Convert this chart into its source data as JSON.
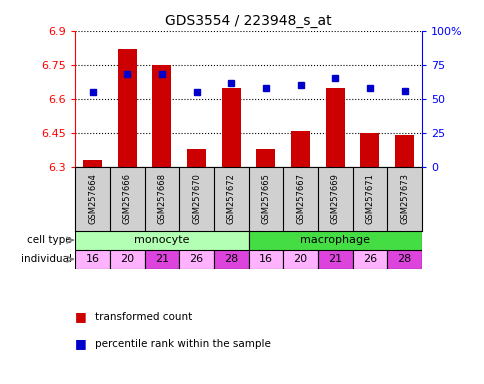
{
  "title": "GDS3554 / 223948_s_at",
  "samples": [
    "GSM257664",
    "GSM257666",
    "GSM257668",
    "GSM257670",
    "GSM257672",
    "GSM257665",
    "GSM257667",
    "GSM257669",
    "GSM257671",
    "GSM257673"
  ],
  "transformed_count": [
    6.33,
    6.82,
    6.75,
    6.38,
    6.65,
    6.38,
    6.46,
    6.65,
    6.45,
    6.44
  ],
  "percentile_rank": [
    55,
    68,
    68,
    55,
    62,
    58,
    60,
    65,
    58,
    56
  ],
  "cell_types": [
    "monocyte",
    "monocyte",
    "monocyte",
    "monocyte",
    "monocyte",
    "macrophage",
    "macrophage",
    "macrophage",
    "macrophage",
    "macrophage"
  ],
  "individuals": [
    "16",
    "20",
    "21",
    "26",
    "28",
    "16",
    "20",
    "21",
    "26",
    "28"
  ],
  "ylim": [
    6.3,
    6.9
  ],
  "yticks": [
    6.3,
    6.45,
    6.6,
    6.75,
    6.9
  ],
  "right_yticks": [
    0,
    25,
    50,
    75,
    100
  ],
  "bar_color": "#cc0000",
  "dot_color": "#0000cc",
  "monocyte_color": "#b3ffb3",
  "macrophage_color": "#44dd44",
  "individual_colors_list": [
    "#ffb3ff",
    "#ffb3ff",
    "#dd44dd",
    "#ffb3ff",
    "#dd44dd",
    "#ffb3ff",
    "#ffb3ff",
    "#dd44dd",
    "#ffb3ff",
    "#dd44dd"
  ],
  "sample_bg_color": "#d0d0d0",
  "label_color_cell": "#888888",
  "label_color_ind": "#888888"
}
